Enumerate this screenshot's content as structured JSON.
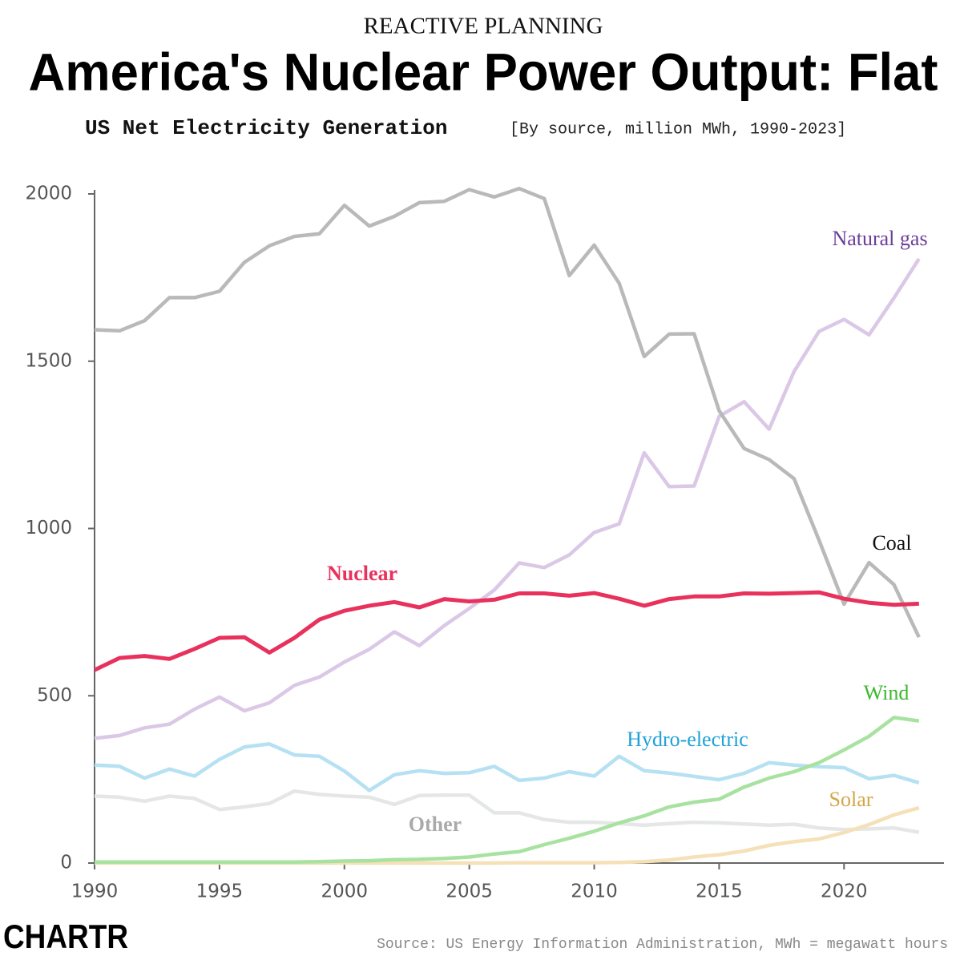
{
  "chart_data": {
    "type": "line",
    "kicker": "REACTIVE PLANNING",
    "title": "America's Nuclear Power Output: Flat",
    "subtitle": "US Net Electricity Generation",
    "subtitle_note": "[By source, million MWh, 1990-2023]",
    "source": "Source: US Energy Information Administration, MWh = megawatt hours",
    "logo": "CHARTR",
    "x": [
      1990,
      1991,
      1992,
      1993,
      1994,
      1995,
      1996,
      1997,
      1998,
      1999,
      2000,
      2001,
      2002,
      2003,
      2004,
      2005,
      2006,
      2007,
      2008,
      2009,
      2010,
      2011,
      2012,
      2013,
      2014,
      2015,
      2016,
      2017,
      2018,
      2019,
      2020,
      2021,
      2022,
      2023
    ],
    "xlim": [
      1990,
      2024
    ],
    "xticks": [
      1990,
      1995,
      2000,
      2005,
      2010,
      2015,
      2020
    ],
    "ylim": [
      0,
      2000
    ],
    "yticks": [
      0,
      500,
      1000,
      1500,
      2000
    ],
    "series": [
      {
        "name": "Coal",
        "color": "#b9b9b9",
        "label_color": "#111111",
        "values": [
          1594,
          1591,
          1621,
          1690,
          1690,
          1709,
          1796,
          1845,
          1873,
          1881,
          1966,
          1904,
          1933,
          1974,
          1978,
          2013,
          1991,
          2016,
          1986,
          1756,
          1847,
          1733,
          1514,
          1581,
          1582,
          1352,
          1239,
          1206,
          1149,
          965,
          774,
          898,
          832,
          675
        ]
      },
      {
        "name": "Natural gas",
        "color": "#dac8e6",
        "label_color": "#6a3d9a",
        "values": [
          373,
          381,
          404,
          415,
          460,
          496,
          455,
          479,
          531,
          556,
          601,
          639,
          691,
          650,
          710,
          761,
          816,
          897,
          883,
          921,
          988,
          1014,
          1226,
          1125,
          1127,
          1335,
          1379,
          1297,
          1469,
          1589,
          1625,
          1579,
          1689,
          1806
        ]
      },
      {
        "name": "Nuclear",
        "color": "#e8315c",
        "label_color": "#e8315c",
        "values": [
          577,
          613,
          619,
          610,
          640,
          673,
          675,
          629,
          673,
          728,
          754,
          769,
          780,
          764,
          789,
          782,
          787,
          806,
          806,
          799,
          807,
          790,
          769,
          789,
          797,
          797,
          806,
          805,
          807,
          809,
          790,
          778,
          772,
          775
        ]
      },
      {
        "name": "Wind",
        "color": "#a8e2a0",
        "label_color": "#3cb82e",
        "values": [
          3,
          3,
          3,
          3,
          3,
          3,
          3,
          3,
          3,
          4,
          6,
          7,
          10,
          11,
          14,
          18,
          27,
          34,
          55,
          74,
          95,
          120,
          141,
          168,
          182,
          191,
          227,
          254,
          273,
          300,
          338,
          379,
          435,
          425
        ]
      },
      {
        "name": "Hydro-electric",
        "color": "#b5e1f2",
        "label_color": "#1fa2d8",
        "values": [
          293,
          289,
          254,
          281,
          260,
          310,
          347,
          356,
          323,
          319,
          275,
          217,
          264,
          276,
          268,
          270,
          289,
          247,
          254,
          273,
          260,
          319,
          276,
          269,
          259,
          249,
          268,
          300,
          293,
          288,
          285,
          252,
          262,
          240
        ]
      },
      {
        "name": "Solar",
        "color": "#f5e0b8",
        "label_color": "#d4a647",
        "values": [
          0,
          0,
          0,
          0,
          0,
          0,
          0,
          0,
          0,
          0,
          0,
          0,
          0,
          0,
          0,
          0,
          0,
          1,
          1,
          1,
          1,
          2,
          4,
          9,
          18,
          25,
          36,
          53,
          64,
          72,
          91,
          115,
          144,
          165
        ]
      },
      {
        "name": "Other",
        "color": "#e4e7e6",
        "label_color": "#aaaaaa",
        "values": [
          200,
          197,
          185,
          200,
          193,
          160,
          168,
          178,
          215,
          205,
          200,
          197,
          175,
          202,
          203,
          203,
          150,
          150,
          130,
          122,
          122,
          118,
          113,
          118,
          122,
          120,
          117,
          113,
          116,
          105,
          100,
          102,
          105,
          92
        ]
      }
    ]
  }
}
